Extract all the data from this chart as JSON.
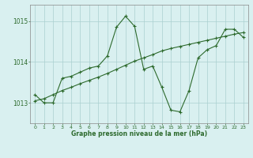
{
  "line1_x": [
    0,
    1,
    2,
    3,
    4,
    5,
    6,
    7,
    8,
    9,
    10,
    11,
    12,
    13,
    14,
    15,
    16,
    17,
    18,
    19,
    20,
    21,
    22,
    23
  ],
  "line1_y": [
    1013.2,
    1013.0,
    1013.0,
    1013.6,
    1013.65,
    1013.75,
    1013.85,
    1013.9,
    1014.15,
    1014.85,
    1015.12,
    1014.87,
    1013.82,
    1013.9,
    1013.38,
    1012.82,
    1012.78,
    1013.3,
    1014.1,
    1014.3,
    1014.4,
    1014.8,
    1014.8,
    1014.6
  ],
  "line2_x": [
    0,
    1,
    2,
    3,
    4,
    5,
    6,
    7,
    8,
    9,
    10,
    11,
    12,
    13,
    14,
    15,
    16,
    17,
    18,
    19,
    20,
    21,
    22,
    23
  ],
  "line2_y": [
    1013.05,
    1013.1,
    1013.2,
    1013.3,
    1013.38,
    1013.47,
    1013.55,
    1013.63,
    1013.72,
    1013.82,
    1013.92,
    1014.02,
    1014.1,
    1014.18,
    1014.27,
    1014.33,
    1014.38,
    1014.43,
    1014.48,
    1014.53,
    1014.58,
    1014.63,
    1014.68,
    1014.72
  ],
  "line_color": "#2d6a2d",
  "bg_color": "#d9f0f0",
  "grid_color": "#aacfcf",
  "text_color": "#2d6a2d",
  "xlabel": "Graphe pression niveau de la mer (hPa)",
  "yticks": [
    1013,
    1014,
    1015
  ],
  "xticks": [
    0,
    1,
    2,
    3,
    4,
    5,
    6,
    7,
    8,
    9,
    10,
    11,
    12,
    13,
    14,
    15,
    16,
    17,
    18,
    19,
    20,
    21,
    22,
    23
  ],
  "ylim": [
    1012.5,
    1015.4
  ],
  "xlim": [
    -0.5,
    23.5
  ]
}
